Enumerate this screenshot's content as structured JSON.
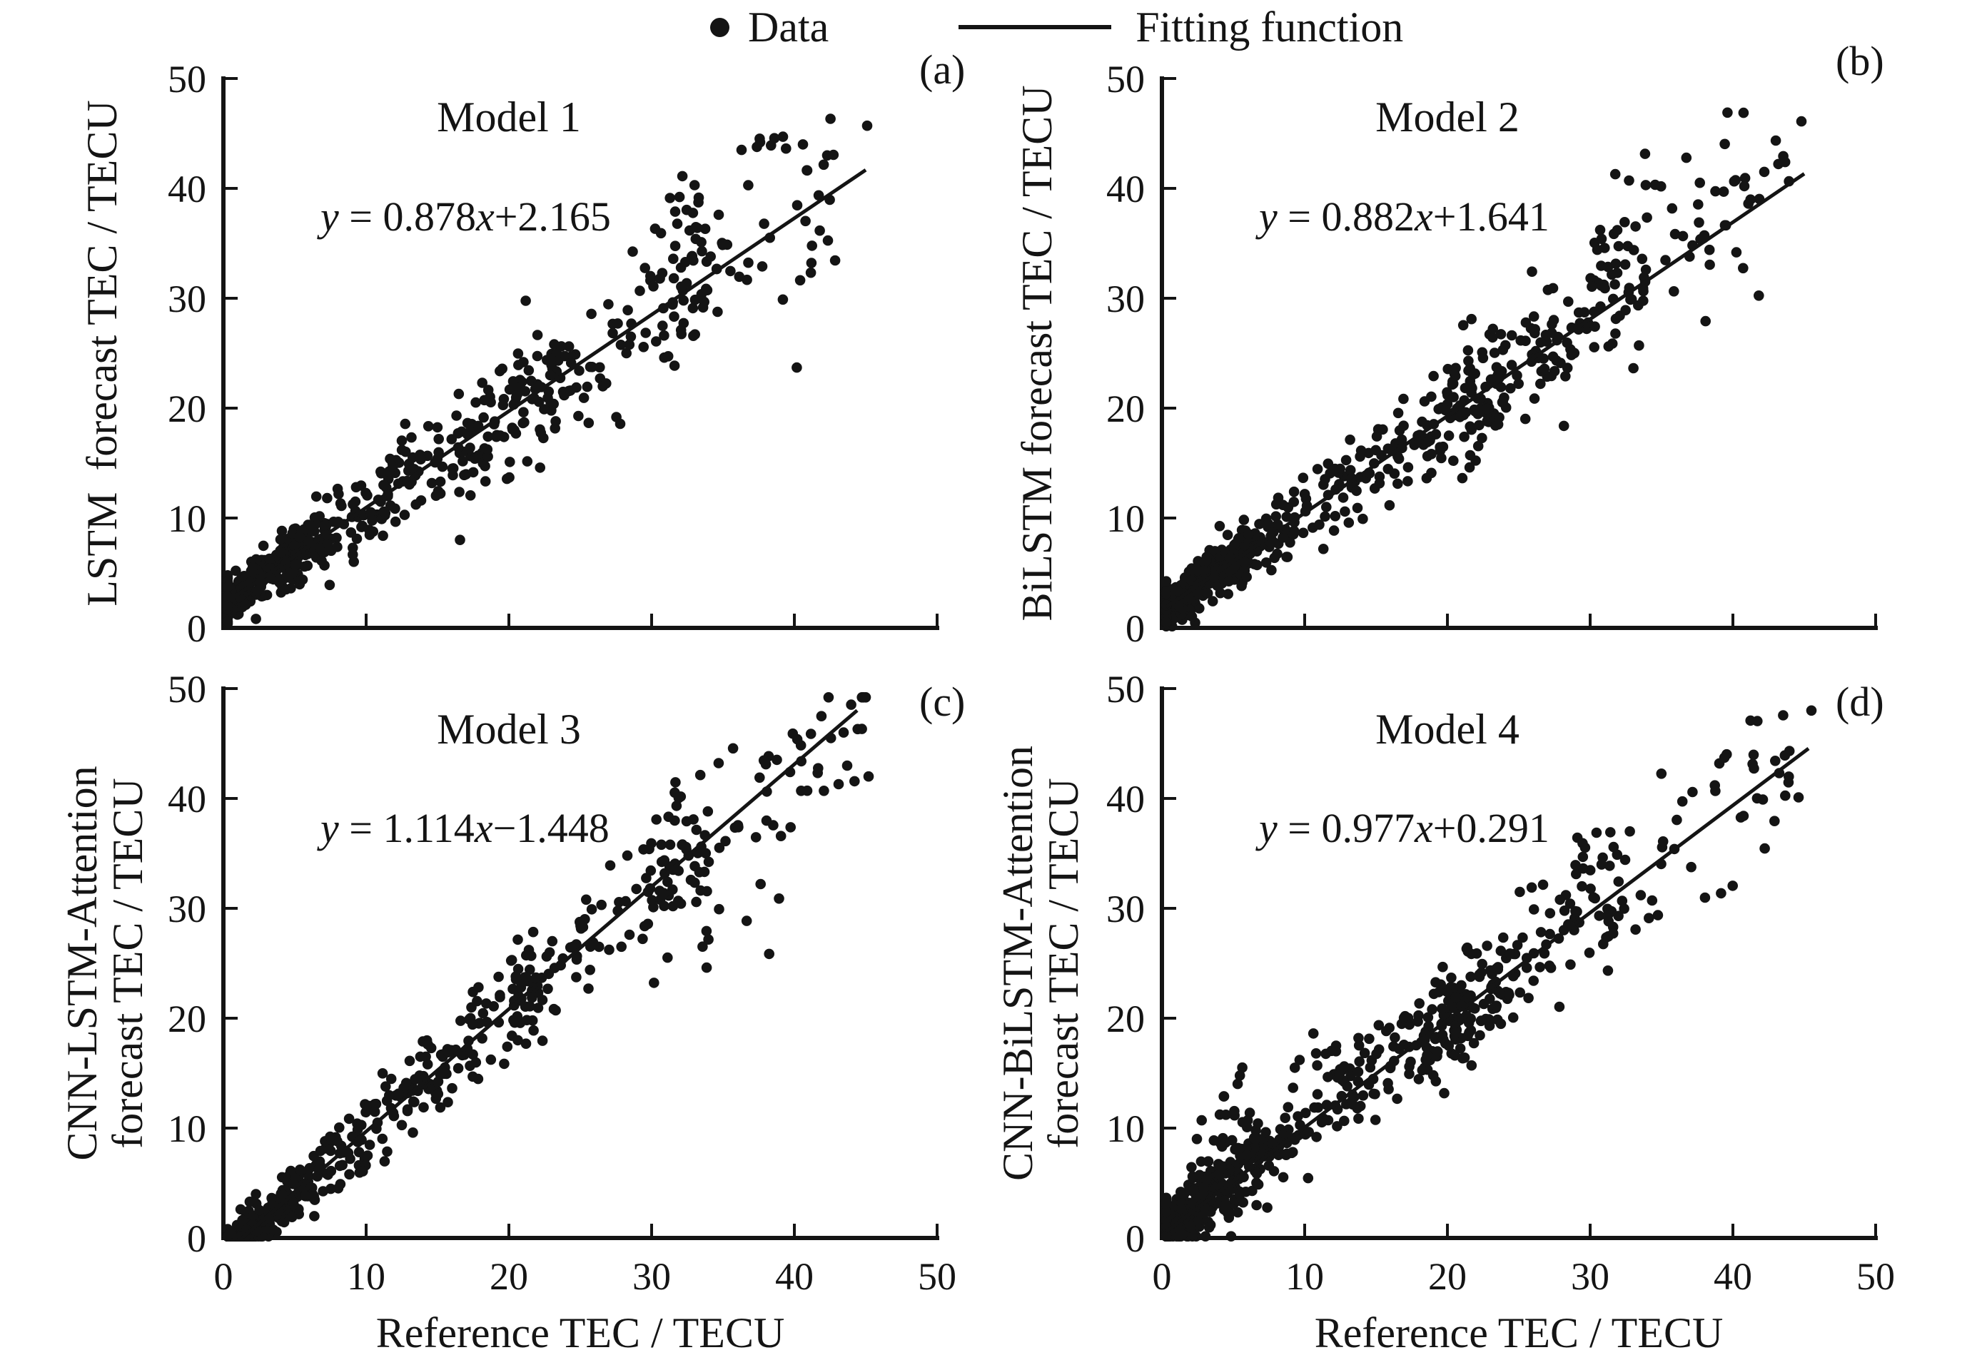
{
  "colors": {
    "ink": "#141414",
    "background": "#ffffff"
  },
  "chart_data": {
    "type": "scatter",
    "xlabel": "Reference TEC / TECU",
    "x_range": [
      0,
      50
    ],
    "y_range": [
      0,
      50
    ],
    "x_ticks": [
      0,
      10,
      20,
      30,
      40,
      50
    ],
    "y_ticks": [
      0,
      10,
      20,
      30,
      40,
      50
    ],
    "grid": false,
    "marker": "filled-black-dot",
    "legend": {
      "data_label": "Data",
      "fit_label": "Fitting function",
      "position": "top-center"
    },
    "panels": [
      {
        "letter": "(a)",
        "title": "Model 1",
        "ylabel_line1": "LSTM  forecast TEC / TECU",
        "ylabel_line2": "",
        "equation": {
          "text": "y = 0.878x+2.165",
          "lhs": "y",
          "mid": " = 0.878",
          "xvar": "x",
          "tail": "+2.165"
        },
        "fit": {
          "slope": 0.878,
          "intercept": 2.165,
          "x_start": 0.3,
          "x_end": 45.0
        },
        "scatter": {
          "seed": 11,
          "n": 640,
          "x_mix": [
            {
              "p": 0.4,
              "type": "n",
              "mu": 2.4,
              "sd": 2.3,
              "lo": 0.3,
              "hi": 9
            },
            {
              "p": 0.34,
              "type": "u",
              "a": 4,
              "b": 24
            },
            {
              "p": 0.18,
              "type": "u",
              "a": 20,
              "b": 34
            },
            {
              "p": 0.08,
              "type": "u",
              "a": 31,
              "b": 43
            }
          ],
          "noise_base": 0.9,
          "noise_growth": 0.085,
          "bias": {
            "from": 28,
            "to": 43,
            "p": 0.5,
            "mean": 2.4,
            "sd": 2.0
          },
          "extra_points": [
            [
              45.1,
              45.7
            ],
            [
              37.6,
              44.2
            ],
            [
              39.2,
              44.7
            ],
            [
              40.6,
              44.0
            ],
            [
              42.3,
              43.0
            ],
            [
              36.3,
              43.5
            ],
            [
              34.7,
              37.6
            ],
            [
              33.2,
              36.4
            ]
          ]
        }
      },
      {
        "letter": "(b)",
        "title": "Model 2",
        "ylabel_line1": "BiLSTM forecast TEC / TECU",
        "ylabel_line2": "",
        "equation": {
          "text": "y = 0.882x+1.641",
          "lhs": "y",
          "mid": " = 0.882",
          "xvar": "x",
          "tail": "+1.641"
        },
        "fit": {
          "slope": 0.882,
          "intercept": 1.641,
          "x_start": 0.3,
          "x_end": 45.0
        },
        "scatter": {
          "seed": 22,
          "n": 670,
          "x_mix": [
            {
              "p": 0.4,
              "type": "n",
              "mu": 2.4,
              "sd": 2.3,
              "lo": 0.3,
              "hi": 9
            },
            {
              "p": 0.34,
              "type": "u",
              "a": 4,
              "b": 24
            },
            {
              "p": 0.18,
              "type": "u",
              "a": 20,
              "b": 34
            },
            {
              "p": 0.08,
              "type": "u",
              "a": 30,
              "b": 44
            }
          ],
          "noise_base": 0.9,
          "noise_growth": 0.08,
          "bias": {
            "from": 30,
            "to": 41,
            "p": 0.55,
            "mean": 2.6,
            "sd": 2.0
          },
          "extra_points": [
            [
              44.8,
              46.1
            ],
            [
              42.2,
              41.5
            ],
            [
              40.8,
              40.2
            ],
            [
              30.8,
              35.4
            ],
            [
              31.9,
              36.2
            ]
          ]
        }
      },
      {
        "letter": "(c)",
        "title": "Model 3",
        "ylabel_line1": "CNN-LSTM-Attention",
        "ylabel_line2": "forecast TEC / TECU",
        "equation": {
          "text": "y = 1.114x−1.448",
          "lhs": "y",
          "mid": " = 1.114",
          "xvar": "x",
          "tail": "−1.448"
        },
        "fit": {
          "slope": 1.114,
          "intercept": -1.448,
          "x_start": 1.35,
          "x_end": 44.4
        },
        "scatter": {
          "seed": 33,
          "n": 660,
          "x_mix": [
            {
              "p": 0.44,
              "type": "n",
              "mu": 1.9,
              "sd": 2.0,
              "lo": 0.3,
              "hi": 9
            },
            {
              "p": 0.3,
              "type": "u",
              "a": 4,
              "b": 22
            },
            {
              "p": 0.18,
              "type": "u",
              "a": 20,
              "b": 34
            },
            {
              "p": 0.08,
              "type": "u",
              "a": 30,
              "b": 45
            }
          ],
          "noise_base": 0.85,
          "noise_growth": 0.08,
          "bias": {
            "from": 33,
            "to": 46,
            "p": 0.6,
            "mean": -3.0,
            "sd": 2.2
          },
          "extra_points": [
            [
              45.2,
              42.0
            ],
            [
              43.1,
              41.3
            ],
            [
              40.9,
              40.7
            ],
            [
              39.7,
              42.4
            ],
            [
              28.3,
              34.8
            ],
            [
              27.1,
              33.9
            ]
          ]
        }
      },
      {
        "letter": "(d)",
        "title": "Model 4",
        "ylabel_line1": "CNN-BiLSTM-Attention",
        "ylabel_line2": "forecast TEC / TECU",
        "equation": {
          "text": "y = 0.977x+0.291",
          "lhs": "y",
          "mid": " = 0.977",
          "xvar": "x",
          "tail": "+0.291"
        },
        "fit": {
          "slope": 0.977,
          "intercept": 0.291,
          "x_start": 0.3,
          "x_end": 45.3
        },
        "scatter": {
          "seed": 44,
          "n": 680,
          "x_mix": [
            {
              "p": 0.42,
              "type": "n",
              "mu": 2.6,
              "sd": 2.6,
              "lo": 0.3,
              "hi": 10
            },
            {
              "p": 0.32,
              "type": "u",
              "a": 4,
              "b": 24
            },
            {
              "p": 0.18,
              "type": "u",
              "a": 18,
              "b": 32
            },
            {
              "p": 0.08,
              "type": "u",
              "a": 28,
              "b": 44
            }
          ],
          "noise_base": 1.5,
          "noise_growth": 0.06,
          "bias": {
            "from": 2,
            "to": 13,
            "p": 0.12,
            "mean": 5.5,
            "sd": 2.0
          },
          "extra_points": [
            [
              45.5,
              48.0
            ],
            [
              44.6,
              40.1
            ],
            [
              42.1,
              39.9
            ],
            [
              10.8,
              16.8
            ],
            [
              12.2,
              17.5
            ]
          ]
        }
      }
    ]
  }
}
